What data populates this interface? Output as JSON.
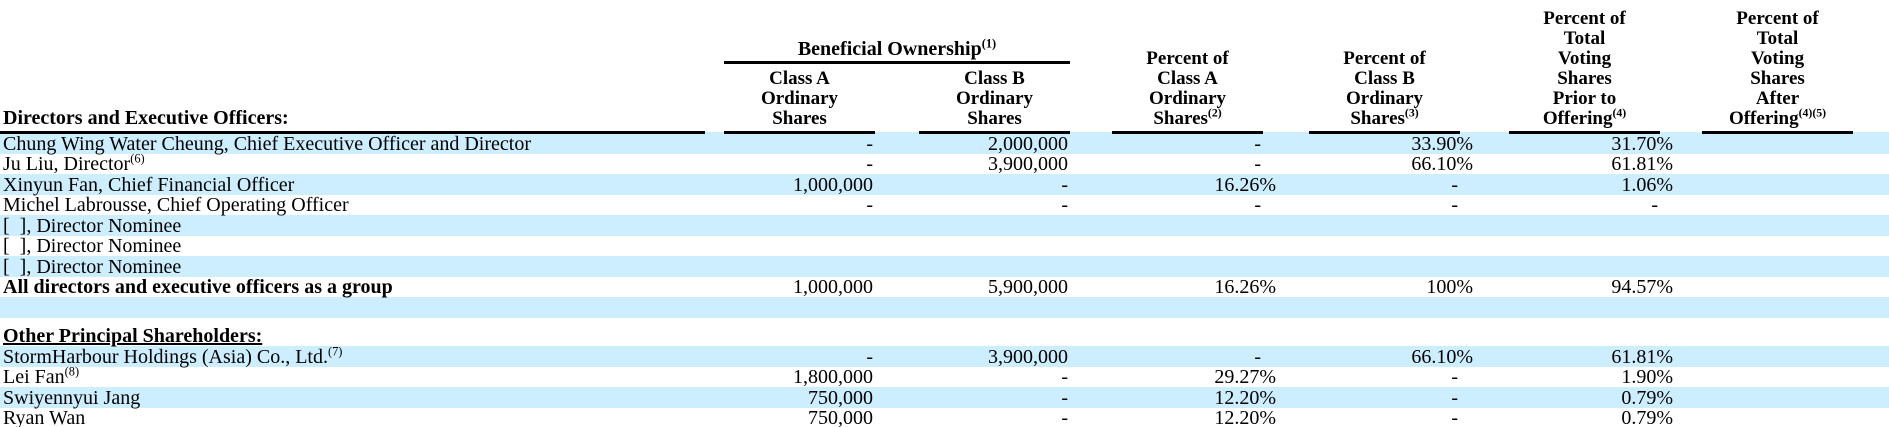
{
  "page": {
    "background": "#ffffff",
    "stripe_color": "#cceeff",
    "text_color": "#000000",
    "rule_color": "#000000"
  },
  "table": {
    "group_header": {
      "label": "Beneficial Ownership",
      "sup": "(1)"
    },
    "section_label": "Directors and Executive Officers:",
    "columns": [
      {
        "header": "Class A\nOrdinary\nShares",
        "sup": ""
      },
      {
        "header": "Class B\nOrdinary\nShares",
        "sup": ""
      },
      {
        "header": "Percent of\nClass A\nOrdinary\nShares",
        "sup": "(2)"
      },
      {
        "header": "Percent of\nClass B\nOrdinary\nShares",
        "sup": "(3)"
      },
      {
        "header": "Percent of\nTotal\nVoting\nShares\nPrior to\nOffering",
        "sup": "(4)"
      },
      {
        "header": "Percent of\nTotal\nVoting\nShares\nAfter\nOffering",
        "sup": "(4)(5)"
      }
    ],
    "rows": [
      {
        "name": "Chung Wing Water Cheung, Chief Executive Officer and Director",
        "name_sup": "",
        "values": [
          "-",
          "2,000,000",
          "-",
          "33.90%",
          "31.70%",
          ""
        ]
      },
      {
        "name": "Ju Liu, Director",
        "name_sup": "(6)",
        "values": [
          "-",
          "3,900,000",
          "-",
          "66.10%",
          "61.81%",
          ""
        ]
      },
      {
        "name": "Xinyun Fan, Chief Financial Officer",
        "name_sup": "",
        "values": [
          "1,000,000",
          "-",
          "16.26%",
          "-",
          "1.06%",
          ""
        ]
      },
      {
        "name": "Michel Labrousse, Chief Operating Officer",
        "name_sup": "",
        "values": [
          "-",
          "-",
          "-",
          "-",
          "-",
          ""
        ]
      },
      {
        "name": "[  ], Director Nominee",
        "name_sup": "",
        "values": [
          "",
          "",
          "",
          "",
          "",
          ""
        ]
      },
      {
        "name": "[  ], Director Nominee",
        "name_sup": "",
        "values": [
          "",
          "",
          "",
          "",
          "",
          ""
        ]
      },
      {
        "name": "[  ], Director Nominee",
        "name_sup": "",
        "values": [
          "",
          "",
          "",
          "",
          "",
          ""
        ]
      },
      {
        "name": "All directors and executive officers as a group",
        "name_sup": "",
        "bold": true,
        "values": [
          "1,000,000",
          "5,900,000",
          "16.26%",
          "100%",
          "94.57%",
          ""
        ]
      },
      {
        "name": "",
        "name_sup": "",
        "values": [
          "",
          "",
          "",
          "",
          "",
          ""
        ]
      },
      {
        "name": "Other Principal Shareholders:",
        "name_sup": "",
        "section": true,
        "values": [
          "",
          "",
          "",
          "",
          "",
          ""
        ]
      },
      {
        "name": "StormHarbour Holdings (Asia) Co., Ltd.",
        "name_sup": "(7)",
        "values": [
          "-",
          "3,900,000",
          "-",
          "66.10%",
          "61.81%",
          ""
        ]
      },
      {
        "name": "Lei Fan",
        "name_sup": "(8)",
        "values": [
          "1,800,000",
          "-",
          "29.27%",
          "-",
          "1.90%",
          ""
        ]
      },
      {
        "name": "Swiyennyui Jang",
        "name_sup": "",
        "values": [
          "750,000",
          "-",
          "12.20%",
          "-",
          "0.79%",
          ""
        ]
      },
      {
        "name": "Ryan Wan",
        "name_sup": "",
        "values": [
          "750,000",
          "-",
          "12.20%",
          "-",
          "0.79%",
          ""
        ]
      }
    ]
  }
}
